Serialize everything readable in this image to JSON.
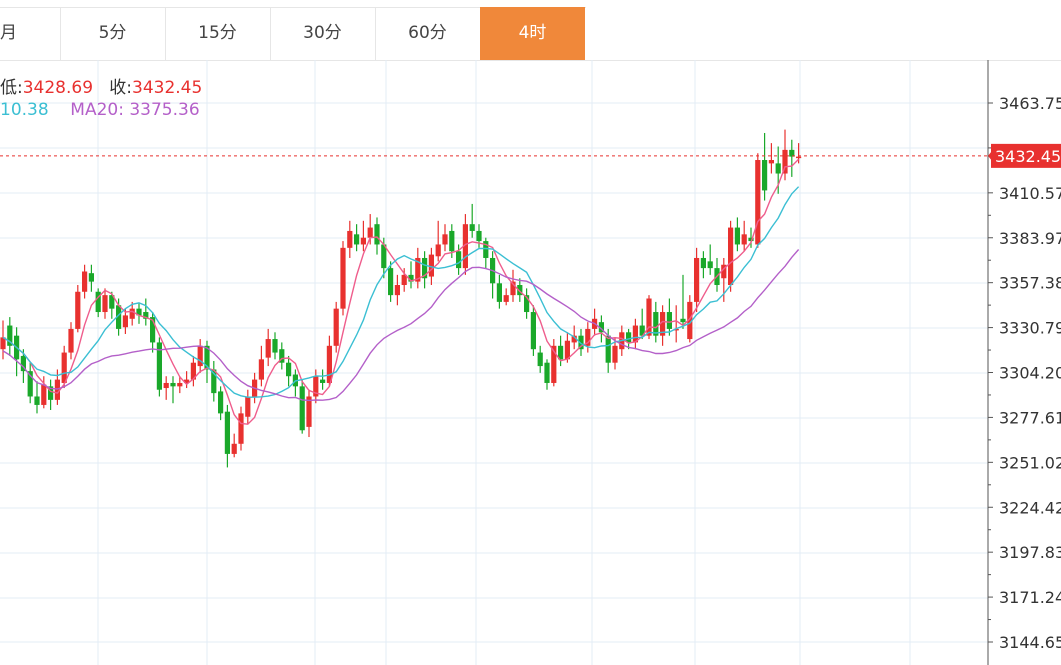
{
  "tabs": [
    {
      "label": "月",
      "active": false
    },
    {
      "label": "5分",
      "active": false
    },
    {
      "label": "15分",
      "active": false
    },
    {
      "label": "30分",
      "active": false
    },
    {
      "label": "60分",
      "active": false
    },
    {
      "label": "4时",
      "active": true
    }
  ],
  "legend": {
    "low_label": "低:",
    "low_value": "3428.69",
    "close_label": "收:",
    "close_value": "3432.45",
    "ma10_value": "10.38",
    "ma20_label": "MA20:",
    "ma20_value": "3375.36"
  },
  "colors": {
    "up": "#e8312f",
    "down": "#1aa82a",
    "ma5": "#ef5d8c",
    "ma10": "#3bbfd3",
    "ma20": "#b460c9",
    "accent_tab": "#f0883a",
    "grid": "#e3ecf5"
  },
  "chart_data": {
    "type": "candlestick",
    "y_axis_ticks": [
      "3463.75",
      "3410.57",
      "3383.97",
      "3357.38",
      "3330.79",
      "3304.20",
      "3277.61",
      "3251.02",
      "3224.42",
      "3197.83",
      "3171.24",
      "3144.65"
    ],
    "ylim": [
      3136,
      3476
    ],
    "current_price_label": "3432.45",
    "current_price": 3432.45,
    "candles": [
      [
        3318,
        3325,
        3335,
        3312
      ],
      [
        3332,
        3320,
        3337,
        3314
      ],
      [
        3326,
        3312,
        3331,
        3302
      ],
      [
        3314,
        3305,
        3318,
        3298
      ],
      [
        3305,
        3290,
        3310,
        3286
      ],
      [
        3290,
        3285,
        3299,
        3280
      ],
      [
        3285,
        3297,
        3302,
        3283
      ],
      [
        3296,
        3288,
        3300,
        3282
      ],
      [
        3288,
        3300,
        3306,
        3285
      ],
      [
        3298,
        3316,
        3320,
        3295
      ],
      [
        3316,
        3330,
        3334,
        3312
      ],
      [
        3330,
        3352,
        3356,
        3328
      ],
      [
        3352,
        3364,
        3368,
        3348
      ],
      [
        3363,
        3358,
        3368,
        3352
      ],
      [
        3352,
        3340,
        3354,
        3337
      ],
      [
        3340,
        3350,
        3354,
        3336
      ],
      [
        3350,
        3342,
        3352,
        3336
      ],
      [
        3344,
        3330,
        3348,
        3326
      ],
      [
        3331,
        3338,
        3342,
        3327
      ],
      [
        3336,
        3342,
        3346,
        3332
      ],
      [
        3342,
        3338,
        3345,
        3333
      ],
      [
        3340,
        3336,
        3348,
        3332
      ],
      [
        3337,
        3322,
        3340,
        3316
      ],
      [
        3322,
        3294,
        3325,
        3290
      ],
      [
        3295,
        3298,
        3302,
        3288
      ],
      [
        3298,
        3296,
        3302,
        3286
      ],
      [
        3296,
        3298,
        3302,
        3292
      ],
      [
        3298,
        3300,
        3305,
        3295
      ],
      [
        3300,
        3310,
        3314,
        3296
      ],
      [
        3308,
        3320,
        3324,
        3304
      ],
      [
        3320,
        3306,
        3323,
        3298
      ],
      [
        3306,
        3292,
        3311,
        3287
      ],
      [
        3293,
        3280,
        3296,
        3276
      ],
      [
        3281,
        3256,
        3285,
        3248
      ],
      [
        3256,
        3262,
        3268,
        3254
      ],
      [
        3262,
        3280,
        3284,
        3258
      ],
      [
        3278,
        3290,
        3294,
        3274
      ],
      [
        3290,
        3300,
        3304,
        3286
      ],
      [
        3300,
        3312,
        3320,
        3296
      ],
      [
        3313,
        3324,
        3330,
        3308
      ],
      [
        3324,
        3316,
        3328,
        3312
      ],
      [
        3318,
        3310,
        3322,
        3306
      ],
      [
        3310,
        3302,
        3314,
        3296
      ],
      [
        3303,
        3296,
        3306,
        3290
      ],
      [
        3296,
        3270,
        3300,
        3268
      ],
      [
        3272,
        3290,
        3294,
        3266
      ],
      [
        3290,
        3302,
        3306,
        3286
      ],
      [
        3300,
        3298,
        3306,
        3294
      ],
      [
        3298,
        3320,
        3326,
        3296
      ],
      [
        3320,
        3342,
        3346,
        3316
      ],
      [
        3342,
        3378,
        3382,
        3338
      ],
      [
        3378,
        3388,
        3394,
        3372
      ],
      [
        3386,
        3380,
        3392,
        3376
      ],
      [
        3380,
        3384,
        3394,
        3376
      ],
      [
        3384,
        3390,
        3398,
        3380
      ],
      [
        3392,
        3380,
        3396,
        3374
      ],
      [
        3380,
        3366,
        3384,
        3360
      ],
      [
        3366,
        3350,
        3370,
        3346
      ],
      [
        3350,
        3356,
        3362,
        3344
      ],
      [
        3356,
        3362,
        3366,
        3352
      ],
      [
        3362,
        3358,
        3370,
        3354
      ],
      [
        3358,
        3372,
        3378,
        3354
      ],
      [
        3372,
        3360,
        3376,
        3354
      ],
      [
        3361,
        3374,
        3378,
        3356
      ],
      [
        3373,
        3380,
        3394,
        3370
      ],
      [
        3380,
        3386,
        3392,
        3376
      ],
      [
        3388,
        3376,
        3392,
        3372
      ],
      [
        3376,
        3366,
        3380,
        3362
      ],
      [
        3366,
        3392,
        3398,
        3362
      ],
      [
        3392,
        3388,
        3404,
        3384
      ],
      [
        3388,
        3382,
        3392,
        3378
      ],
      [
        3382,
        3372,
        3384,
        3366
      ],
      [
        3372,
        3357,
        3376,
        3348
      ],
      [
        3357,
        3346,
        3362,
        3342
      ],
      [
        3346,
        3350,
        3354,
        3344
      ],
      [
        3350,
        3358,
        3365,
        3346
      ],
      [
        3356,
        3350,
        3360,
        3346
      ],
      [
        3350,
        3340,
        3354,
        3336
      ],
      [
        3340,
        3318,
        3344,
        3314
      ],
      [
        3316,
        3308,
        3320,
        3304
      ],
      [
        3310,
        3298,
        3312,
        3294
      ],
      [
        3298,
        3320,
        3324,
        3296
      ],
      [
        3320,
        3312,
        3326,
        3308
      ],
      [
        3312,
        3323,
        3328,
        3310
      ],
      [
        3322,
        3326,
        3332,
        3318
      ],
      [
        3326,
        3318,
        3330,
        3314
      ],
      [
        3320,
        3330,
        3334,
        3316
      ],
      [
        3330,
        3336,
        3342,
        3326
      ],
      [
        3334,
        3328,
        3338,
        3322
      ],
      [
        3326,
        3310,
        3330,
        3304
      ],
      [
        3310,
        3320,
        3325,
        3306
      ],
      [
        3318,
        3328,
        3332,
        3314
      ],
      [
        3328,
        3322,
        3330,
        3318
      ],
      [
        3322,
        3332,
        3336,
        3318
      ],
      [
        3332,
        3326,
        3342,
        3324
      ],
      [
        3326,
        3348,
        3350,
        3324
      ],
      [
        3340,
        3326,
        3346,
        3322
      ],
      [
        3326,
        3340,
        3344,
        3320
      ],
      [
        3340,
        3330,
        3348,
        3326
      ],
      [
        3330,
        3330,
        3344,
        3322
      ],
      [
        3336,
        3334,
        3362,
        3330
      ],
      [
        3324,
        3346,
        3350,
        3322
      ],
      [
        3346,
        3372,
        3378,
        3340
      ],
      [
        3372,
        3366,
        3376,
        3360
      ],
      [
        3370,
        3366,
        3380,
        3362
      ],
      [
        3366,
        3356,
        3372,
        3352
      ],
      [
        3360,
        3368,
        3372,
        3346
      ],
      [
        3356,
        3390,
        3394,
        3352
      ],
      [
        3390,
        3380,
        3396,
        3376
      ],
      [
        3380,
        3386,
        3394,
        3376
      ],
      [
        3384,
        3382,
        3390,
        3378
      ],
      [
        3380,
        3430,
        3434,
        3378
      ],
      [
        3430,
        3412,
        3446,
        3406
      ],
      [
        3428,
        3430,
        3440,
        3422
      ],
      [
        3428,
        3422,
        3438,
        3410
      ],
      [
        3422,
        3436,
        3448,
        3418
      ],
      [
        3436,
        3432,
        3442,
        3420
      ],
      [
        3432,
        3432,
        3440,
        3428
      ]
    ],
    "ma10_visible_fragment": "10.38",
    "ma20_last": 3375.36
  }
}
